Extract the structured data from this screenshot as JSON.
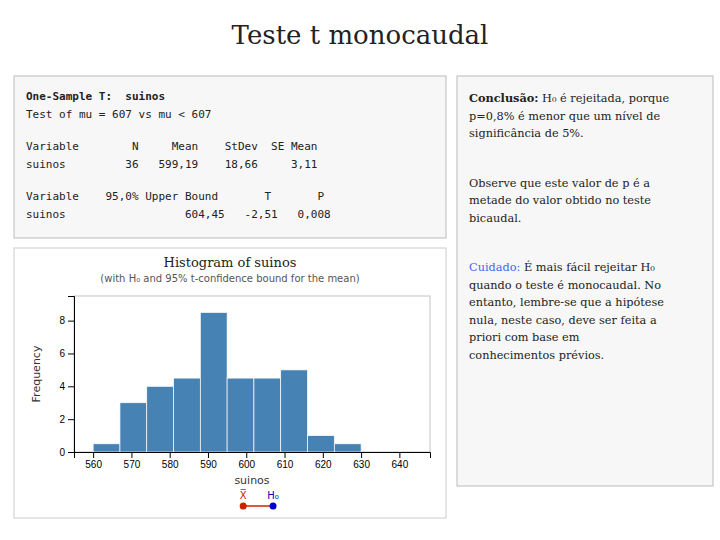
{
  "chart_data": {
    "type": "histogram",
    "title": "Teste t monocaudal",
    "xlabel": "suinos",
    "ylabel": "Frequency",
    "bins": [
      560,
      567,
      574,
      581,
      588,
      595,
      602,
      609,
      616,
      623,
      630,
      637,
      644
    ],
    "values": [
      0.5,
      3,
      4,
      4.5,
      8.5,
      4.5,
      4.5,
      5,
      1,
      0.5,
      0,
      0
    ],
    "xlim": [
      555,
      648
    ],
    "ylim": [
      0,
      9.5
    ],
    "xticks": [
      560,
      570,
      580,
      590,
      600,
      610,
      620,
      630,
      640
    ],
    "yticks": [
      0,
      2,
      4,
      6,
      8
    ],
    "markers": [
      {
        "name": "X̅",
        "value": 599.19,
        "color": "#cc2200"
      },
      {
        "name": "H₀",
        "value": 607,
        "color": "#0000cc"
      }
    ],
    "annotations": [
      {
        "text": "Histogram of suinos"
      },
      {
        "text": "(with H₀ and 95% t-confidence bound for the mean)"
      },
      {
        "groups": [
          [
            "One-Sample T:  suinos",
            "Test of mu = 607 vs mu < 607"
          ],
          [
            "Variable        N     Mean    StDev  SE Mean",
            "suinos         36   599,19    18,66     3,11"
          ],
          [
            "Variable    95,0% Upper Bound       T       P",
            "suinos                  604,45   -2,51   0,008"
          ]
        ]
      },
      {
        "lines": [
          "Conclusão: H₀ é rejeitada, porque",
          "p=0,8% é menor que um nível de",
          "significância de 5%."
        ]
      },
      {
        "lines": [
          "Observe que este valor de p é a",
          "metade do valor obtido no teste",
          "bicaudal."
        ]
      },
      {
        "lines": [
          "Cuidado: É mais fácil rejeitar H₀",
          "quando o teste é monocaudal. No",
          "entanto, lembre-se que a hipótese",
          "nula, neste caso, deve ser feita a",
          "priori com base em",
          "conhecimentos prévios."
        ],
        "color": "#4466ee"
      }
    ]
  }
}
